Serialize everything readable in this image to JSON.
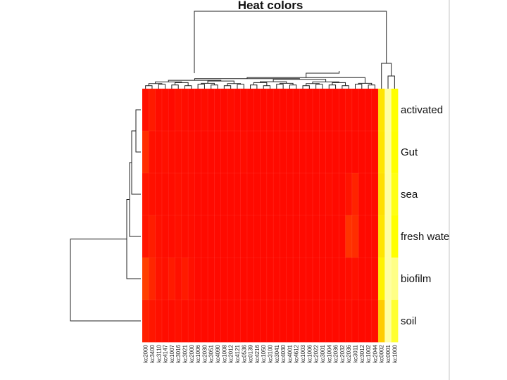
{
  "chart_data": {
    "type": "heatmap",
    "title": "Heat colors",
    "rows": [
      "activated",
      "Gut",
      "sea",
      "fresh wate",
      "biofilm",
      "soil"
    ],
    "columns": [
      "kc2000",
      "kc3400",
      "kc3110",
      "kc4147",
      "kc1007",
      "kc3016",
      "kc3021",
      "kc2000",
      "kc1006",
      "kc2030",
      "kc3051",
      "kc4090",
      "kc1008",
      "kc2012",
      "kc4121",
      "kc0536",
      "kc0139",
      "kc4216",
      "kc1050",
      "kc3100",
      "kc3041",
      "kc4030",
      "kc4001",
      "kc4612",
      "kc1003",
      "kc1006",
      "kc2022",
      "kc3001",
      "kc1004",
      "kc2036",
      "kc2032",
      "kc2036",
      "kc3011",
      "kc3012",
      "kc1002",
      "kc2044",
      "kc0002",
      "kc0001",
      "kc1000"
    ],
    "value_range": [
      0,
      1
    ],
    "color_scale": [
      "#ff0000",
      "#ff4000",
      "#ff8000",
      "#ffbf00",
      "#ffff00",
      "#ffffbf"
    ],
    "values": [
      [
        0.05,
        0.08,
        0.04,
        0.04,
        0.03,
        0.05,
        0.04,
        0.03,
        0.03,
        0.04,
        0.03,
        0.03,
        0.03,
        0.04,
        0.03,
        0.03,
        0.03,
        0.03,
        0.03,
        0.03,
        0.03,
        0.03,
        0.03,
        0.03,
        0.03,
        0.03,
        0.03,
        0.03,
        0.03,
        0.03,
        0.03,
        0.04,
        0.03,
        0.03,
        0.03,
        0.04,
        0.72,
        0.97,
        0.8
      ],
      [
        0.14,
        0.05,
        0.04,
        0.05,
        0.04,
        0.04,
        0.04,
        0.04,
        0.03,
        0.03,
        0.03,
        0.03,
        0.03,
        0.03,
        0.03,
        0.04,
        0.03,
        0.03,
        0.03,
        0.03,
        0.03,
        0.03,
        0.03,
        0.03,
        0.03,
        0.03,
        0.03,
        0.03,
        0.03,
        0.03,
        0.03,
        0.03,
        0.03,
        0.03,
        0.03,
        0.04,
        0.72,
        0.97,
        0.8
      ],
      [
        0.07,
        0.05,
        0.04,
        0.04,
        0.04,
        0.05,
        0.04,
        0.04,
        0.03,
        0.03,
        0.03,
        0.03,
        0.03,
        0.03,
        0.03,
        0.03,
        0.03,
        0.03,
        0.03,
        0.03,
        0.03,
        0.03,
        0.03,
        0.03,
        0.03,
        0.03,
        0.03,
        0.03,
        0.04,
        0.03,
        0.03,
        0.06,
        0.11,
        0.03,
        0.03,
        0.04,
        0.7,
        0.97,
        0.82
      ],
      [
        0.07,
        0.09,
        0.05,
        0.04,
        0.04,
        0.05,
        0.04,
        0.04,
        0.03,
        0.03,
        0.03,
        0.03,
        0.03,
        0.03,
        0.03,
        0.03,
        0.03,
        0.03,
        0.03,
        0.03,
        0.03,
        0.03,
        0.03,
        0.03,
        0.03,
        0.03,
        0.03,
        0.03,
        0.03,
        0.03,
        0.03,
        0.16,
        0.14,
        0.03,
        0.03,
        0.04,
        0.72,
        0.97,
        0.8
      ],
      [
        0.2,
        0.12,
        0.06,
        0.05,
        0.08,
        0.05,
        0.08,
        0.05,
        0.03,
        0.03,
        0.03,
        0.03,
        0.03,
        0.03,
        0.03,
        0.03,
        0.03,
        0.03,
        0.03,
        0.03,
        0.03,
        0.03,
        0.03,
        0.03,
        0.03,
        0.03,
        0.03,
        0.03,
        0.03,
        0.03,
        0.03,
        0.04,
        0.05,
        0.03,
        0.03,
        0.04,
        0.76,
        0.97,
        0.94
      ],
      [
        0.1,
        0.07,
        0.05,
        0.04,
        0.04,
        0.05,
        0.04,
        0.04,
        0.03,
        0.03,
        0.03,
        0.03,
        0.03,
        0.03,
        0.03,
        0.03,
        0.03,
        0.03,
        0.03,
        0.03,
        0.03,
        0.03,
        0.03,
        0.03,
        0.03,
        0.03,
        0.03,
        0.03,
        0.03,
        0.03,
        0.03,
        0.04,
        0.03,
        0.03,
        0.03,
        0.04,
        0.64,
        0.97,
        0.85
      ]
    ],
    "row_dendrogram": true,
    "column_dendrogram": true
  }
}
